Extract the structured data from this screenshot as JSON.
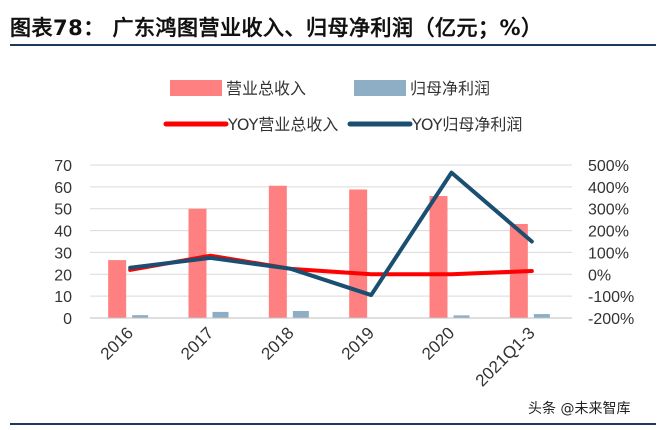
{
  "title": "图表78：  广东鸿图营业收入、归母净利润（亿元；%）",
  "watermark": {
    "text": "头条 @未来智库",
    "brand": "未来智库"
  },
  "colors": {
    "revenue_bar": "#ff8080",
    "profit_bar": "#8eaec6",
    "revenue_yoy": "#ff0000",
    "profit_yoy": "#1b4f72",
    "grid": "#d9d9d9",
    "text": "#333333",
    "title_rule": "#1f3b5b"
  },
  "chart_data": {
    "type": "bar",
    "title": "广东鸿图营业收入、归母净利润（亿元；%）",
    "categories": [
      "2016",
      "2017",
      "2018",
      "2019",
      "2020",
      "2021Q1-3"
    ],
    "series": [
      {
        "name": "营业总收入",
        "kind": "bar",
        "axis": "left",
        "values": [
          26.5,
          50,
          60.5,
          58.8,
          55.8,
          43
        ]
      },
      {
        "name": "归母净利润",
        "kind": "bar",
        "axis": "left",
        "values": [
          1.3,
          2.8,
          3.2,
          0.2,
          1.2,
          1.8
        ]
      },
      {
        "name": "YOY营业总收入",
        "kind": "line",
        "axis": "right",
        "values": [
          20,
          85,
          25,
          0,
          0,
          15
        ]
      },
      {
        "name": "YOY归母净利润",
        "kind": "line",
        "axis": "right",
        "values": [
          30,
          75,
          25,
          -95,
          465,
          150
        ]
      }
    ],
    "left_axis": {
      "min": 0,
      "max": 70,
      "ticks": [
        "0",
        "10",
        "20",
        "30",
        "40",
        "50",
        "60",
        "70"
      ]
    },
    "right_axis": {
      "min": -200,
      "max": 500,
      "ticks": [
        "-200%",
        "-100%",
        "0%",
        "100%",
        "200%",
        "300%",
        "400%",
        "500%"
      ]
    },
    "legend_position": "top-center",
    "grid": true
  }
}
